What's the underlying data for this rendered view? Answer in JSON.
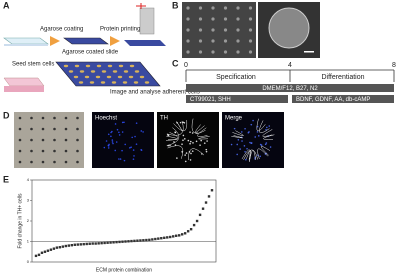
{
  "panels": {
    "a": {
      "letter": "A",
      "steps": [
        "Agarose coating",
        "Protein printing",
        "Agarose coated slide",
        "Seed stem cells",
        "Image and analyse adherent cells"
      ]
    },
    "b": {
      "letter": "B"
    },
    "c": {
      "letter": "C",
      "phases": [
        "Specification",
        "Differentiation"
      ],
      "medium": "DMEM/F12, B27, N2",
      "factors": [
        "CT99021, SHH",
        "BDNF, GDNF, AA, db-cAMP"
      ],
      "scale": {
        "range": [
          0,
          8
        ],
        "ticks": [
          0,
          4,
          8
        ]
      }
    },
    "d": {
      "letter": "D",
      "channels": [
        "Hoechst",
        "TH",
        "Merge"
      ]
    },
    "e": {
      "letter": "E"
    }
  },
  "chart_data": {
    "type": "scatter",
    "ylabel": "Fold change in TH+ cells",
    "xlabel": "ECM protein combination",
    "ylim": [
      0,
      4
    ],
    "yticks": [
      0,
      1,
      2,
      3,
      4
    ],
    "reference_line": 1,
    "color": "#333333",
    "values": [
      0.3,
      0.35,
      0.45,
      0.5,
      0.55,
      0.6,
      0.65,
      0.7,
      0.72,
      0.75,
      0.78,
      0.8,
      0.82,
      0.84,
      0.85,
      0.86,
      0.87,
      0.88,
      0.89,
      0.9,
      0.9,
      0.91,
      0.92,
      0.93,
      0.94,
      0.95,
      0.96,
      0.97,
      0.98,
      0.99,
      1.0,
      1.01,
      1.02,
      1.03,
      1.04,
      1.05,
      1.06,
      1.07,
      1.08,
      1.1,
      1.12,
      1.14,
      1.16,
      1.18,
      1.2,
      1.22,
      1.25,
      1.28,
      1.3,
      1.35,
      1.4,
      1.5,
      1.6,
      1.8,
      2.0,
      2.3,
      2.6,
      2.9,
      3.2,
      3.5
    ]
  }
}
